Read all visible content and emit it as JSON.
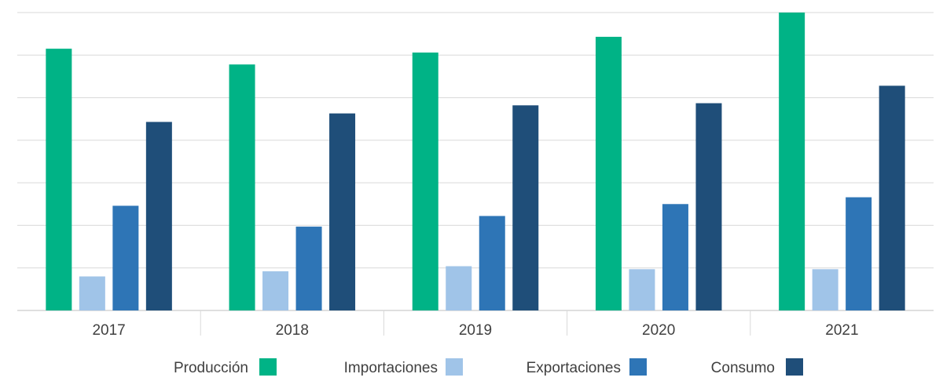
{
  "chart_data": {
    "type": "bar",
    "categories": [
      "2017",
      "2018",
      "2019",
      "2020",
      "2021"
    ],
    "series": [
      {
        "name": "Producción",
        "color": "#00b386",
        "values": [
          61.5,
          57.8,
          60.6,
          64.3,
          70.0
        ]
      },
      {
        "name": "Importaciones",
        "color": "#a0c4e8",
        "values": [
          8.0,
          9.2,
          10.4,
          9.7,
          9.7
        ]
      },
      {
        "name": "Exportaciones",
        "color": "#2e75b6",
        "values": [
          24.6,
          19.7,
          22.2,
          25.0,
          26.6
        ]
      },
      {
        "name": "Consumo",
        "color": "#1f4e79",
        "values": [
          44.3,
          46.3,
          48.2,
          48.7,
          52.8
        ]
      }
    ],
    "ylim": [
      0,
      70
    ],
    "y_gridlines": [
      0,
      10,
      20,
      30,
      40,
      50,
      60,
      70
    ],
    "y_tick_labels_visible": false,
    "grid": true,
    "legend_position": "bottom",
    "title": "",
    "xlabel": "",
    "ylabel": ""
  }
}
